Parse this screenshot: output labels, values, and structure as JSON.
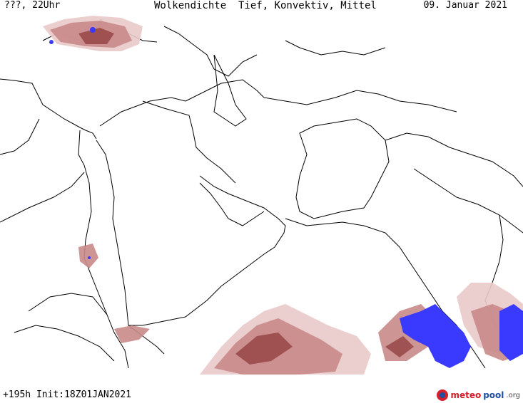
{
  "header": {
    "left": "???, 22Uhr",
    "center": "Wolkendichte  Tief, Konvektiv, Mittel",
    "right": "09. Januar 2021"
  },
  "footer": {
    "forecast": "+195h Init:18Z01JAN2021",
    "logo": {
      "part1": "meteo",
      "part2": "pool",
      "part3": ".org"
    }
  },
  "colors": {
    "cloud_light": "#e9c9c9",
    "cloud_medium": "#c98a8a",
    "cloud_dense": "#9a4a4a",
    "convective": "#3a3aff",
    "border": "#000000"
  }
}
